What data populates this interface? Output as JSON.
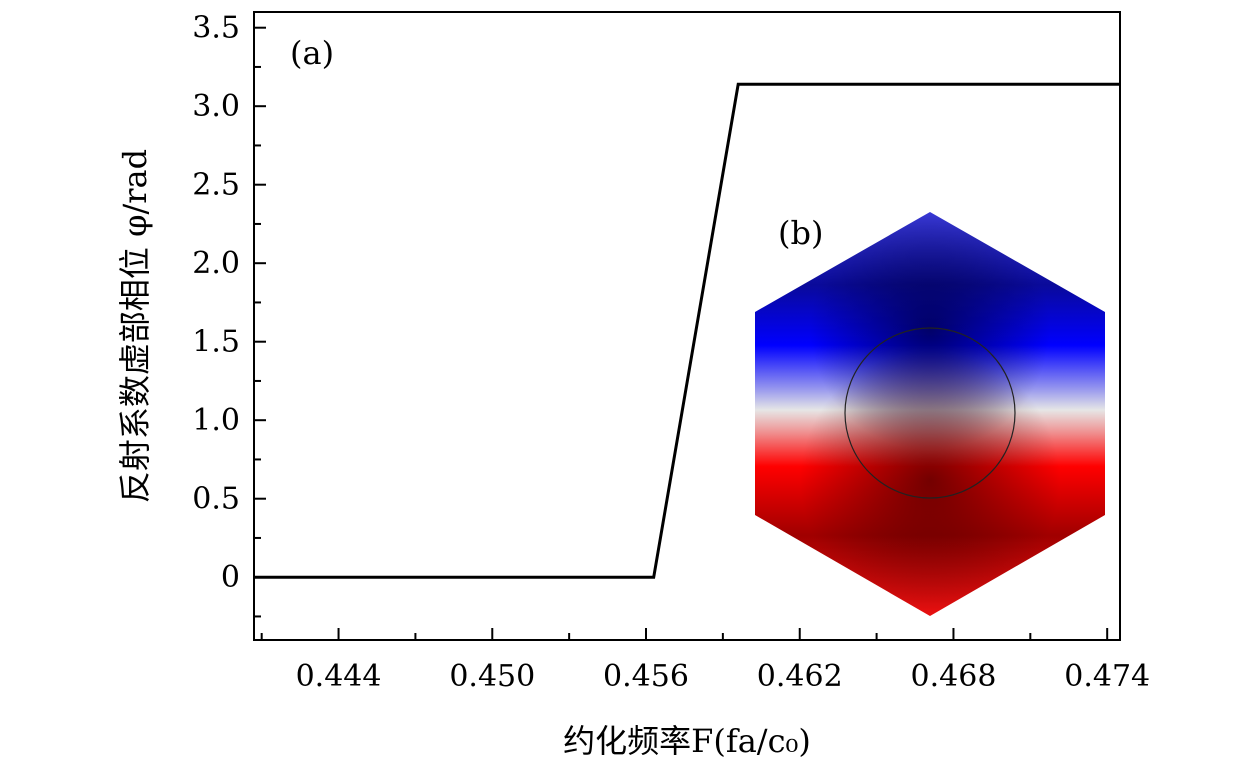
{
  "chart_data": {
    "type": "line",
    "title": "",
    "xlabel": "约化频率F(fa/c₀)",
    "ylabel": "反射系数虚部相位 φ/rad",
    "xlim": [
      0.4407,
      0.4745
    ],
    "ylim": [
      -0.4,
      3.6
    ],
    "x_ticks": [
      0.444,
      0.45,
      0.456,
      0.462,
      0.468,
      0.474
    ],
    "x_tick_labels": [
      "0.444",
      "0.450",
      "0.456",
      "0.462",
      "0.468",
      "0.474"
    ],
    "y_ticks": [
      0,
      0.5,
      1.0,
      1.5,
      2.0,
      2.5,
      3.0,
      3.5
    ],
    "y_tick_labels": [
      "0",
      "0.5",
      "1.0",
      "1.5",
      "2.0",
      "2.5",
      "3.0",
      "3.5"
    ],
    "grid": false,
    "series": [
      {
        "x": [
          0.4407,
          0.4563,
          0.4596,
          0.4745
        ],
        "y": [
          0,
          0,
          3.14,
          3.14
        ],
        "color": "#000000"
      }
    ],
    "annotations": [
      {
        "text": "(a)",
        "role": "panel-label"
      },
      {
        "text": "(b)",
        "role": "inset-label"
      }
    ],
    "inset": {
      "description_icon": "hexagon-field-map",
      "colors": {
        "top": "#0000b0",
        "middle": "#e8e8e8",
        "bottom": "#d00000"
      }
    }
  }
}
